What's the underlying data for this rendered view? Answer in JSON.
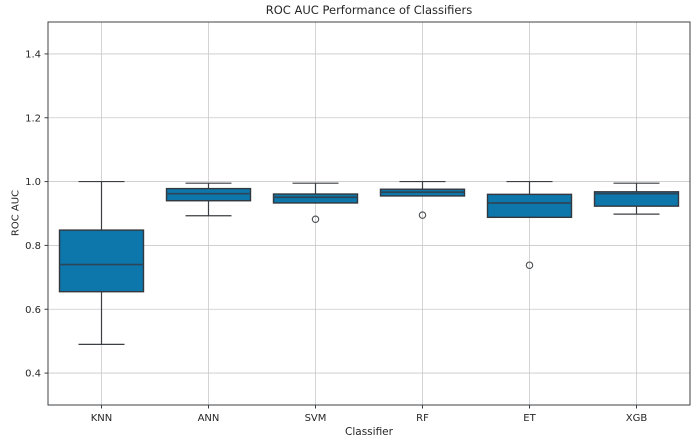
{
  "chart_data": {
    "type": "box",
    "title": "ROC AUC Performance of Classifiers",
    "xlabel": "Classifier",
    "ylabel": "ROC AUC",
    "ylim": [
      0.3,
      1.5
    ],
    "yticks": [
      0.4,
      0.6,
      0.8,
      1.0,
      1.2,
      1.4
    ],
    "categories": [
      "KNN",
      "ANN",
      "SVM",
      "RF",
      "ET",
      "XGB"
    ],
    "grid": true,
    "legend_position": "none",
    "series": [
      {
        "label": "KNN",
        "whislo": 0.49,
        "q1": 0.655,
        "med": 0.74,
        "q3": 0.848,
        "whishi": 1.0,
        "fliers": []
      },
      {
        "label": "ANN",
        "whislo": 0.893,
        "q1": 0.94,
        "med": 0.962,
        "q3": 0.978,
        "whishi": 0.995,
        "fliers": []
      },
      {
        "label": "SVM",
        "whislo": 0.933,
        "q1": 0.933,
        "med": 0.951,
        "q3": 0.961,
        "whishi": 0.995,
        "fliers": [
          0.882
        ]
      },
      {
        "label": "RF",
        "whislo": 0.955,
        "q1": 0.955,
        "med": 0.967,
        "q3": 0.976,
        "whishi": 1.0,
        "fliers": [
          0.895
        ]
      },
      {
        "label": "ET",
        "whislo": 0.888,
        "q1": 0.888,
        "med": 0.933,
        "q3": 0.96,
        "whishi": 1.0,
        "fliers": [
          0.738
        ]
      },
      {
        "label": "XGB",
        "whislo": 0.898,
        "q1": 0.923,
        "med": 0.962,
        "q3": 0.968,
        "whishi": 0.995,
        "fliers": []
      }
    ],
    "colors": {
      "box_fill": "#0d76ab",
      "box_edge": "#33383d",
      "median": "#2c4657",
      "whisker": "#3b3f43",
      "flier_edge": "#4a4e52",
      "grid": "#c9c9c9",
      "spine": "#3c4044",
      "text": "#262626"
    }
  }
}
